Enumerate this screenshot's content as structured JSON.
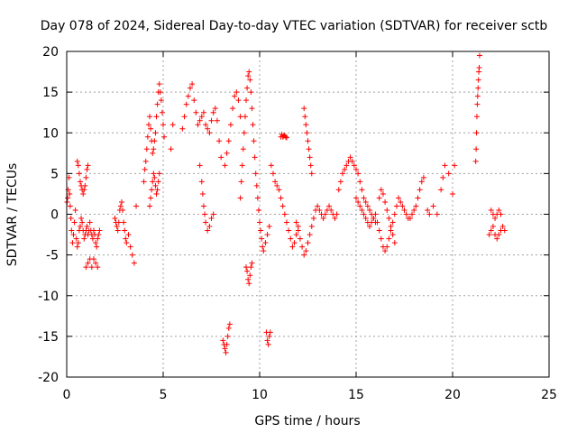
{
  "chart_data": {
    "type": "scatter",
    "title": "Day 078 of 2024, Sidereal Day-to-day VTEC variation (SDTVAR) for receiver sctb",
    "xlabel": "GPS time / hours",
    "ylabel": "SDTVAR / TECUs",
    "xlim": [
      0,
      25
    ],
    "ylim": [
      -20,
      20
    ],
    "xticks": [
      0,
      5,
      10,
      15,
      20,
      25
    ],
    "yticks": [
      -20,
      -15,
      -10,
      -5,
      0,
      5,
      10,
      15,
      20
    ],
    "grid": true,
    "marker": "+",
    "color": "#ff0000",
    "series": [
      {
        "name": "SDTVAR",
        "x": [
          0.02,
          0.05,
          0.08,
          0.12,
          0.15,
          0.18,
          0.22,
          0.25,
          0.3,
          0.35,
          0.4,
          0.45,
          0.5,
          0.55,
          0.6,
          0.65,
          0.7,
          0.75,
          0.8,
          0.85,
          0.9,
          0.95,
          1.0,
          1.05,
          1.1,
          1.15,
          1.2,
          1.25,
          1.3,
          1.35,
          1.4,
          1.45,
          1.5,
          1.55,
          1.6,
          1.65,
          1.7,
          0.55,
          0.6,
          0.65,
          0.7,
          0.75,
          0.8,
          0.85,
          0.9,
          0.95,
          1.0,
          1.05,
          1.1,
          1.0,
          1.1,
          1.2,
          1.3,
          1.4,
          1.5,
          1.6,
          2.5,
          2.55,
          2.6,
          2.65,
          2.7,
          2.75,
          2.8,
          2.85,
          2.9,
          2.95,
          3.0,
          3.05,
          3.1,
          3.2,
          3.3,
          3.4,
          3.5,
          3.6,
          4.0,
          4.05,
          4.1,
          4.15,
          4.2,
          4.25,
          4.3,
          4.35,
          4.4,
          4.45,
          4.5,
          4.55,
          4.6,
          4.65,
          4.7,
          4.75,
          4.8,
          4.85,
          4.9,
          4.95,
          5.0,
          5.05,
          4.3,
          4.35,
          4.4,
          4.45,
          4.5,
          4.55,
          4.6,
          4.65,
          4.7,
          4.75,
          4.8,
          5.4,
          5.5,
          6.0,
          6.1,
          6.2,
          6.3,
          6.4,
          6.5,
          6.6,
          6.7,
          6.8,
          6.9,
          7.0,
          7.1,
          7.2,
          7.3,
          7.4,
          7.5,
          7.6,
          7.7,
          7.8,
          7.9,
          8.0,
          6.9,
          7.0,
          7.05,
          7.1,
          7.15,
          7.2,
          7.3,
          7.4,
          7.5,
          7.6,
          8.2,
          8.3,
          8.4,
          8.5,
          8.6,
          8.7,
          8.8,
          8.9,
          9.0,
          8.1,
          8.15,
          8.2,
          8.25,
          8.3,
          8.35,
          8.4,
          8.45,
          9.0,
          9.05,
          9.1,
          9.15,
          9.2,
          9.25,
          9.3,
          9.35,
          9.4,
          9.45,
          9.5,
          9.55,
          9.6,
          9.65,
          9.7,
          9.75,
          9.8,
          9.85,
          9.9,
          9.95,
          10.0,
          10.05,
          10.1,
          10.15,
          10.2,
          10.3,
          10.4,
          10.5,
          9.3,
          9.35,
          9.4,
          9.45,
          9.5,
          9.55,
          9.6,
          10.35,
          10.4,
          10.45,
          10.5,
          10.55,
          10.6,
          10.7,
          10.8,
          10.9,
          11.0,
          11.1,
          11.2,
          11.3,
          11.4,
          11.5,
          11.6,
          11.7,
          11.8,
          11.9,
          12.0,
          11.1,
          11.15,
          11.2,
          11.25,
          11.3,
          11.35,
          11.4,
          11.9,
          12.0,
          12.1,
          12.2,
          12.3,
          12.4,
          12.5,
          12.6,
          12.7,
          12.8,
          12.9,
          13.0,
          13.1,
          13.2,
          13.3,
          13.4,
          13.5,
          13.6,
          13.7,
          13.8,
          13.9,
          14.0,
          12.3,
          12.35,
          12.4,
          12.45,
          12.5,
          12.55,
          12.6,
          12.65,
          12.7,
          14.1,
          14.2,
          14.3,
          14.4,
          14.5,
          14.6,
          14.7,
          14.8,
          14.9,
          15.0,
          15.1,
          15.2,
          15.3,
          15.4,
          15.5,
          15.6,
          15.7,
          15.8,
          15.9,
          16.0,
          15.0,
          15.1,
          15.2,
          15.3,
          15.4,
          15.5,
          15.6,
          15.7,
          15.8,
          15.9,
          16.0,
          16.1,
          16.2,
          16.3,
          16.4,
          16.5,
          16.6,
          16.7,
          16.8,
          16.9,
          17.0,
          17.1,
          17.2,
          17.3,
          17.4,
          17.5,
          17.6,
          17.7,
          17.8,
          17.9,
          18.0,
          18.1,
          18.2,
          18.3,
          18.4,
          18.5,
          16.2,
          16.3,
          16.4,
          16.5,
          16.6,
          16.7,
          16.8,
          16.9,
          17.0,
          18.7,
          18.8,
          19.0,
          19.2,
          19.4,
          19.5,
          19.6,
          19.8,
          20.0,
          20.1,
          21.2,
          21.22,
          21.24,
          21.26,
          21.28,
          21.3,
          21.32,
          21.34,
          21.36,
          21.38,
          21.4,
          21.9,
          22.0,
          22.1,
          22.2,
          22.3,
          22.4,
          22.5,
          22.6,
          22.7,
          22.0,
          22.1,
          22.2,
          22.3,
          22.4,
          22.5
        ],
        "y": [
          1.5,
          2.0,
          3.0,
          4.5,
          2.5,
          1.0,
          -0.5,
          -2.0,
          -3.5,
          -2.5,
          -1.0,
          0.5,
          -3.0,
          -4.0,
          -3.5,
          -2.0,
          -1.5,
          -0.5,
          -1.0,
          -2.0,
          -3.0,
          -2.5,
          -2.0,
          -1.5,
          -2.5,
          -2.0,
          -1.0,
          -2.0,
          -2.5,
          -3.0,
          -2.0,
          -2.5,
          -3.5,
          -4.0,
          -3.0,
          -2.5,
          -2.0,
          6.5,
          6.0,
          5.0,
          4.0,
          3.5,
          3.0,
          2.5,
          3.0,
          3.5,
          4.5,
          5.5,
          6.0,
          -6.5,
          -6.0,
          -5.5,
          -6.5,
          -5.5,
          -6.0,
          -6.5,
          -0.5,
          -1.0,
          -1.5,
          -2.0,
          -1.0,
          0.5,
          1.0,
          1.5,
          0.5,
          -1.0,
          -2.0,
          -3.0,
          -3.5,
          -2.5,
          -4.0,
          -5.0,
          -6.0,
          1.0,
          4.0,
          5.5,
          6.5,
          8.0,
          9.5,
          11.0,
          12.0,
          10.5,
          9.0,
          7.5,
          8.0,
          9.0,
          10.0,
          12.0,
          13.5,
          15.0,
          16.0,
          15.0,
          14.0,
          12.5,
          11.0,
          9.5,
          1.0,
          2.0,
          3.0,
          4.0,
          5.0,
          4.5,
          3.5,
          2.5,
          3.0,
          4.0,
          5.0,
          8.0,
          11.0,
          10.5,
          12.0,
          13.5,
          14.5,
          15.5,
          16.0,
          14.0,
          12.5,
          11.0,
          11.5,
          12.0,
          12.5,
          11.0,
          10.5,
          10.0,
          11.5,
          12.5,
          13.0,
          11.5,
          9.0,
          7.0,
          6.0,
          4.0,
          2.5,
          1.0,
          0.0,
          -1.0,
          -2.0,
          -1.5,
          -0.5,
          0.0,
          6.0,
          7.5,
          9.0,
          11.0,
          13.0,
          14.5,
          15.0,
          14.0,
          12.0,
          -15.5,
          -16.0,
          -16.5,
          -17.0,
          -16.0,
          -15.0,
          -14.0,
          -13.5,
          2.0,
          4.0,
          6.0,
          8.0,
          10.0,
          12.0,
          14.0,
          15.5,
          17.0,
          17.5,
          16.5,
          15.0,
          13.0,
          11.0,
          9.0,
          7.0,
          5.0,
          3.5,
          2.0,
          0.5,
          -1.0,
          -2.0,
          -3.0,
          -4.0,
          -4.5,
          -3.5,
          -2.5,
          -1.5,
          -6.5,
          -7.0,
          -8.0,
          -8.5,
          -7.5,
          -6.5,
          -6.0,
          -14.5,
          -15.5,
          -16.0,
          -15.0,
          -14.5,
          6.0,
          5.0,
          4.0,
          3.5,
          3.0,
          2.0,
          1.0,
          0.0,
          -1.0,
          -2.0,
          -3.0,
          -4.0,
          -3.5,
          -2.5,
          -1.5,
          9.5,
          9.8,
          9.5,
          9.6,
          9.7,
          9.5,
          9.4,
          -1.0,
          -2.0,
          -3.0,
          -4.0,
          -5.0,
          -4.5,
          -3.5,
          -2.5,
          -1.5,
          -0.5,
          0.5,
          1.0,
          0.5,
          0.0,
          -0.5,
          0.0,
          0.5,
          1.0,
          0.5,
          0.0,
          -0.5,
          0.0,
          13.0,
          12.0,
          11.0,
          10.0,
          9.0,
          8.0,
          7.0,
          6.0,
          5.0,
          3.0,
          4.0,
          5.0,
          5.5,
          6.0,
          6.5,
          7.0,
          6.5,
          6.0,
          5.5,
          5.0,
          4.0,
          3.0,
          2.0,
          1.5,
          1.0,
          0.5,
          0.0,
          -0.5,
          -1.0,
          2.0,
          1.5,
          1.0,
          0.5,
          0.0,
          -0.5,
          -1.0,
          -1.5,
          -1.0,
          -0.5,
          0.0,
          -1.0,
          -2.0,
          -3.0,
          -4.0,
          -4.5,
          -4.0,
          -3.0,
          -2.0,
          -1.0,
          0.0,
          1.0,
          2.0,
          1.5,
          1.0,
          0.5,
          0.0,
          -0.5,
          -0.5,
          0.0,
          0.5,
          1.0,
          2.0,
          3.0,
          4.0,
          4.5,
          2.0,
          3.0,
          2.5,
          1.5,
          0.5,
          -0.5,
          -1.5,
          -2.5,
          -3.5,
          0.5,
          0.0,
          1.0,
          0.0,
          3.0,
          4.5,
          6.0,
          5.0,
          2.5,
          6.0,
          6.5,
          8.0,
          10.0,
          12.0,
          13.5,
          14.5,
          15.5,
          16.5,
          17.5,
          18.0,
          19.5,
          -2.5,
          -2.0,
          -1.5,
          -2.5,
          -3.0,
          -2.5,
          -2.0,
          -1.5,
          -2.0,
          0.5,
          0.0,
          -0.5,
          0.0,
          0.5,
          0.0
        ]
      }
    ]
  }
}
